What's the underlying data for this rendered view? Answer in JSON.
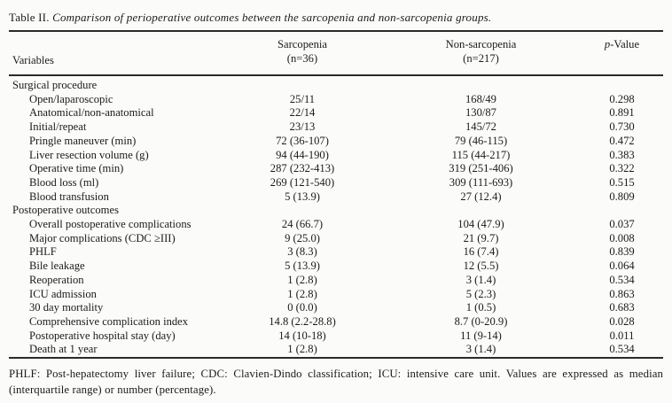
{
  "title": {
    "label": "Table II.",
    "caption": "Comparison of perioperative outcomes between the sarcopenia and non-sarcopenia groups."
  },
  "table": {
    "header": {
      "variables": "Variables",
      "group1_line1": "Sarcopenia",
      "group1_line2": "(n=36)",
      "group2_line1": "Non-sarcopenia",
      "group2_line2": "(n=217)",
      "pvalue_italic": "p",
      "pvalue_rest": "-Value"
    },
    "rows": [
      {
        "type": "section",
        "label": "Surgical procedure"
      },
      {
        "type": "data",
        "label": "Open/laparoscopic",
        "sarcopenia": "25/11",
        "non_sarcopenia": "168/49",
        "p_value": "0.298"
      },
      {
        "type": "data",
        "label": "Anatomical/non-anatomical",
        "sarcopenia": "22/14",
        "non_sarcopenia": "130/87",
        "p_value": "0.891"
      },
      {
        "type": "data",
        "label": "Initial/repeat",
        "sarcopenia": "23/13",
        "non_sarcopenia": "145/72",
        "p_value": "0.730"
      },
      {
        "type": "data",
        "label": "Pringle maneuver (min)",
        "sarcopenia": "72 (36-107)",
        "non_sarcopenia": "79 (46-115)",
        "p_value": "0.472"
      },
      {
        "type": "data",
        "label": "Liver resection volume (g)",
        "sarcopenia": "94 (44-190)",
        "non_sarcopenia": "115 (44-217)",
        "p_value": "0.383"
      },
      {
        "type": "data",
        "label": "Operative time (min)",
        "sarcopenia": "287 (232-413)",
        "non_sarcopenia": "319 (251-406)",
        "p_value": "0.322"
      },
      {
        "type": "data",
        "label": "Blood loss (ml)",
        "sarcopenia": "269 (121-540)",
        "non_sarcopenia": "309 (111-693)",
        "p_value": "0.515"
      },
      {
        "type": "data",
        "label": "Blood transfusion",
        "sarcopenia": "5 (13.9)",
        "non_sarcopenia": "27 (12.4)",
        "p_value": "0.809"
      },
      {
        "type": "section",
        "label": "Postoperative outcomes"
      },
      {
        "type": "data",
        "label": "Overall postoperative complications",
        "sarcopenia": "24 (66.7)",
        "non_sarcopenia": "104 (47.9)",
        "p_value": "0.037"
      },
      {
        "type": "data",
        "label": "Major complications (CDC ≥III)",
        "sarcopenia": "9 (25.0)",
        "non_sarcopenia": "21 (9.7)",
        "p_value": "0.008"
      },
      {
        "type": "data",
        "label": "PHLF",
        "sarcopenia": "3 (8.3)",
        "non_sarcopenia": "16 (7.4)",
        "p_value": "0.839"
      },
      {
        "type": "data",
        "label": "Bile leakage",
        "sarcopenia": "5 (13.9)",
        "non_sarcopenia": "12 (5.5)",
        "p_value": "0.064"
      },
      {
        "type": "data",
        "label": "Reoperation",
        "sarcopenia": "1 (2.8)",
        "non_sarcopenia": "3 (1.4)",
        "p_value": "0.534"
      },
      {
        "type": "data",
        "label": "ICU admission",
        "sarcopenia": "1 (2.8)",
        "non_sarcopenia": "5 (2.3)",
        "p_value": "0.863"
      },
      {
        "type": "data",
        "label": "30 day mortality",
        "sarcopenia": "0 (0.0)",
        "non_sarcopenia": "1 (0.5)",
        "p_value": "0.683"
      },
      {
        "type": "data",
        "label": "Comprehensive complication index",
        "sarcopenia": "14.8 (2.2-28.8)",
        "non_sarcopenia": "8.7 (0-20.9)",
        "p_value": "0.028"
      },
      {
        "type": "data",
        "label": "Postoperative hospital stay (day)",
        "sarcopenia": "14 (10-18)",
        "non_sarcopenia": "11 (9-14)",
        "p_value": "0.011"
      },
      {
        "type": "data",
        "label": "Death at 1 year",
        "sarcopenia": "1 (2.8)",
        "non_sarcopenia": "3 (1.4)",
        "p_value": "0.534"
      }
    ]
  },
  "footnote": "PHLF: Post-hepatectomy liver failure; CDC: Clavien-Dindo classification; ICU: intensive care unit. Values are expressed as median (interquartile range) or number (percentage)."
}
